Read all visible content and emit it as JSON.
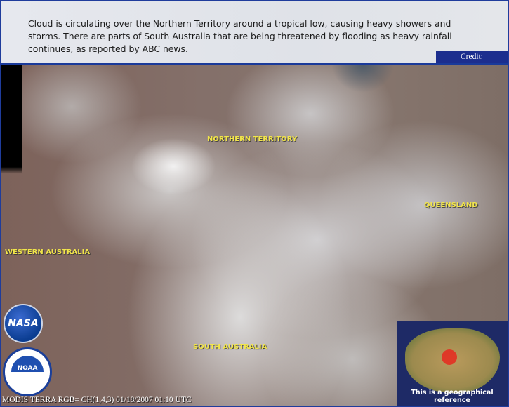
{
  "header": {
    "caption": "Cloud is circulating over the Northern Territory around a tropical low, causing heavy showers and storms. There are parts of South Australia that are being threatened by flooding as heavy rainfall continues, as reported by ABC news.",
    "credit": "Credit: NOAA/NASA"
  },
  "map": {
    "labels": {
      "northern_territory": "NORTHERN TERRITORY",
      "queensland": "QUEENSLAND",
      "western_australia": "WESTERN AUSTRALIA",
      "south_australia": "SOUTH AUSTRALIA"
    },
    "instrument_caption": "MODIS TERRA RGB= CH(1,4,3) 01/18/2007 01:10 UTC"
  },
  "logos": {
    "nasa": "NASA",
    "noaa": "NOAA"
  },
  "inset": {
    "caption": "This is a geographical reference",
    "highlight_color": "#e6281e"
  },
  "colors": {
    "frame": "#1f3c9c",
    "label": "#f2e54a",
    "credit_bg": "#1c2e8e"
  }
}
